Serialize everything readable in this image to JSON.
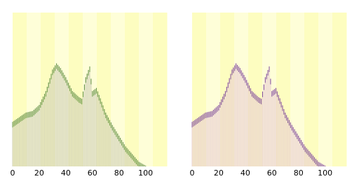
{
  "chart_data": [
    {
      "type": "bar",
      "color": "#c9c9b4",
      "cap_color": "#3a7a1a",
      "xlim": [
        0,
        116
      ],
      "ylim": [
        0,
        100
      ],
      "xticks": [
        0,
        20,
        40,
        60,
        80,
        100
      ],
      "x": [
        0,
        1,
        2,
        3,
        4,
        5,
        6,
        7,
        8,
        9,
        10,
        11,
        12,
        13,
        14,
        15,
        16,
        17,
        18,
        19,
        20,
        21,
        22,
        23,
        24,
        25,
        26,
        27,
        28,
        29,
        30,
        31,
        32,
        33,
        34,
        35,
        36,
        37,
        38,
        39,
        40,
        41,
        42,
        43,
        44,
        45,
        46,
        47,
        48,
        49,
        50,
        51,
        52,
        53,
        54,
        55,
        56,
        57,
        58,
        59,
        60,
        61,
        62,
        63,
        64,
        65,
        66,
        67,
        68,
        69,
        70,
        71,
        72,
        73,
        74,
        75,
        76,
        77,
        78,
        79,
        80,
        81,
        82,
        83,
        84,
        85,
        86,
        87,
        88,
        89,
        90,
        91,
        92,
        93,
        94,
        95,
        96,
        97,
        98,
        99,
        100
      ],
      "values": [
        29,
        29.6,
        30.2,
        30.8,
        31.4,
        32,
        32.6,
        33.2,
        33.8,
        34.4,
        35,
        35.2,
        35.4,
        35.6,
        35.8,
        36,
        36.8,
        37.6,
        38.4,
        39.2,
        40,
        41.8,
        43.6,
        45.4,
        47.2,
        49,
        51.8,
        54.6,
        57.4,
        60.2,
        63,
        64.3,
        65.7,
        67,
        66,
        65,
        64,
        62.5,
        61,
        59.5,
        58,
        56.2,
        54.4,
        52.6,
        50.8,
        49,
        48.2,
        47.4,
        46.6,
        45.8,
        45,
        44.5,
        44,
        48.7,
        53.3,
        58,
        60.3,
        62.7,
        65,
        57,
        49,
        49.7,
        50.3,
        51,
        48.8,
        46.5,
        44.3,
        42,
        39.7,
        37.3,
        35,
        33.4,
        31.8,
        30.2,
        28.6,
        27,
        25.6,
        24.2,
        22.8,
        21.4,
        20,
        18.6,
        17.2,
        15.8,
        14.4,
        13,
        12,
        11,
        10,
        9,
        8,
        7,
        6,
        5,
        4,
        3,
        2.5,
        2,
        1.5,
        1,
        0.5
      ]
    },
    {
      "type": "bar",
      "color": "#e6c8d2",
      "cap_color": "#5a1a8a",
      "xlim": [
        0,
        116
      ],
      "ylim": [
        0,
        100
      ],
      "xticks": [
        0,
        20,
        40,
        60,
        80,
        100
      ],
      "x": [
        0,
        1,
        2,
        3,
        4,
        5,
        6,
        7,
        8,
        9,
        10,
        11,
        12,
        13,
        14,
        15,
        16,
        17,
        18,
        19,
        20,
        21,
        22,
        23,
        24,
        25,
        26,
        27,
        28,
        29,
        30,
        31,
        32,
        33,
        34,
        35,
        36,
        37,
        38,
        39,
        40,
        41,
        42,
        43,
        44,
        45,
        46,
        47,
        48,
        49,
        50,
        51,
        52,
        53,
        54,
        55,
        56,
        57,
        58,
        59,
        60,
        61,
        62,
        63,
        64,
        65,
        66,
        67,
        68,
        69,
        70,
        71,
        72,
        73,
        74,
        75,
        76,
        77,
        78,
        79,
        80,
        81,
        82,
        83,
        84,
        85,
        86,
        87,
        88,
        89,
        90,
        91,
        92,
        93,
        94,
        95,
        96,
        97,
        98,
        99,
        100
      ],
      "values": [
        29,
        29.6,
        30.2,
        30.8,
        31.4,
        32,
        32.6,
        33.2,
        33.8,
        34.4,
        35,
        35.2,
        35.4,
        35.6,
        35.8,
        36,
        36.8,
        37.6,
        38.4,
        39.2,
        40,
        41.8,
        43.6,
        45.4,
        47.2,
        49,
        51.8,
        54.6,
        57.4,
        60.2,
        63,
        64.3,
        65.7,
        67,
        66,
        65,
        64,
        62.5,
        61,
        59.5,
        58,
        56.2,
        54.4,
        52.6,
        50.8,
        49,
        48.2,
        47.4,
        46.6,
        45.8,
        45,
        44.5,
        44,
        48.7,
        53.3,
        58,
        60.3,
        62.7,
        65,
        57,
        49,
        49.7,
        50.3,
        51,
        48.8,
        46.5,
        44.3,
        42,
        39.7,
        37.3,
        35,
        33.4,
        31.8,
        30.2,
        28.6,
        27,
        25.6,
        24.2,
        22.8,
        21.4,
        20,
        18.6,
        17.2,
        15.8,
        14.4,
        13,
        12,
        11,
        10,
        9,
        8,
        7,
        6,
        5,
        4,
        3,
        2.5,
        2,
        1.5,
        1,
        0.5
      ]
    }
  ]
}
